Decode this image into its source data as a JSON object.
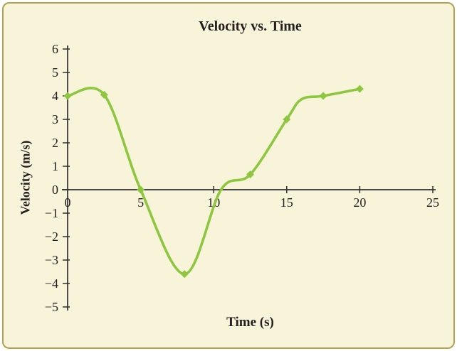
{
  "chart_data": {
    "type": "line",
    "title": "Velocity vs. Time",
    "xlabel": "Time (s)",
    "ylabel": "Velocity (m/s)",
    "xlim": [
      0,
      25
    ],
    "ylim": [
      -5,
      6
    ],
    "xticks": [
      0,
      5,
      10,
      15,
      20,
      25
    ],
    "yticks": [
      -5,
      -4,
      -3,
      -2,
      -1,
      0,
      1,
      2,
      3,
      4,
      5,
      6
    ],
    "grid": false,
    "legend": false,
    "series": [
      {
        "name": "velocity",
        "color": "#8dc63f",
        "marker": "diamond",
        "points": [
          {
            "x": 0,
            "y": 4,
            "marker": true
          },
          {
            "x": 2.5,
            "y": 4.05,
            "marker": true
          },
          {
            "x": 5,
            "y": 0,
            "marker": true
          },
          {
            "x": 8,
            "y": -3.6,
            "marker": true
          },
          {
            "x": 10.5,
            "y": 0,
            "marker": false
          },
          {
            "x": 12.5,
            "y": 0.65,
            "marker": true
          },
          {
            "x": 15,
            "y": 3,
            "marker": true
          },
          {
            "x": 16,
            "y": 3.85,
            "marker": false
          },
          {
            "x": 17.5,
            "y": 4,
            "marker": true
          },
          {
            "x": 20,
            "y": 4.3,
            "marker": true
          }
        ]
      }
    ],
    "colors": {
      "background": "#f8f4da",
      "border": "#b0a04f",
      "axis": "#2f2f2f",
      "text": "#231f20",
      "line": "#8dc63f"
    }
  }
}
